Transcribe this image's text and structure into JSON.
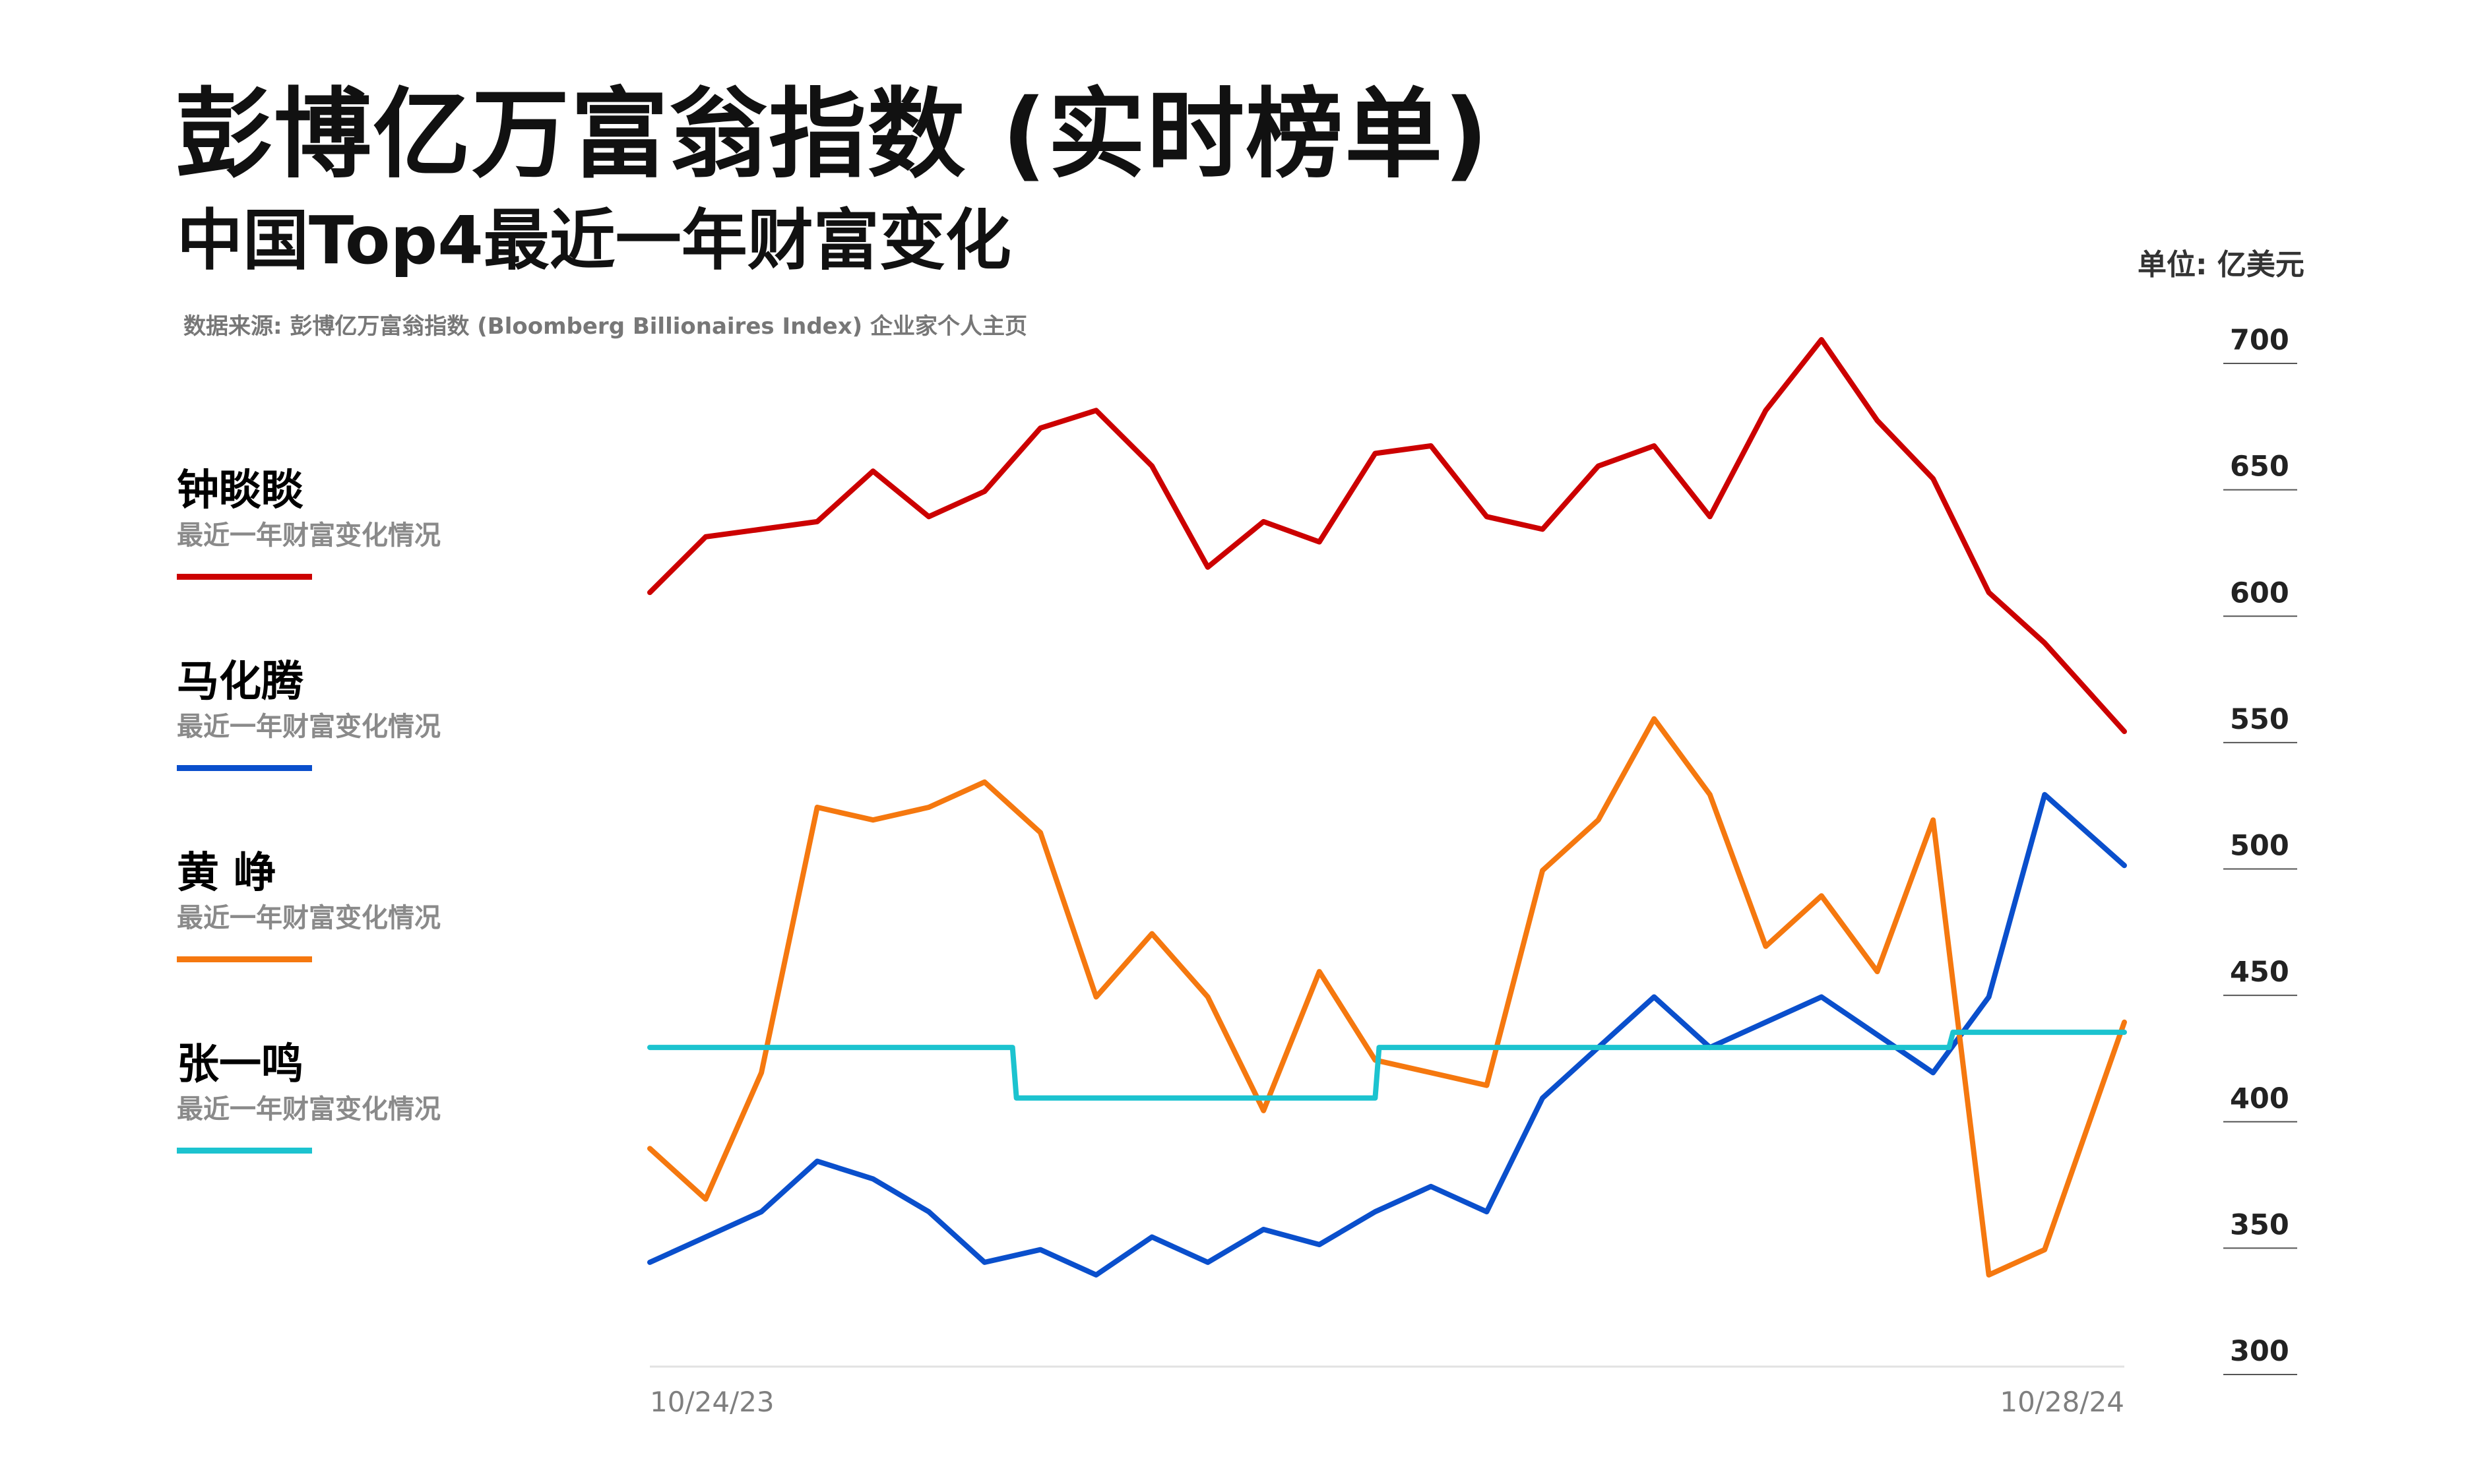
{
  "title": "彭博亿万富翁指数 (实时榜单)",
  "subtitle": "中国Top4最近一年财富变化",
  "source": "数据来源: 彭博亿万富翁指数 (Bloomberg Billionaires Index) 企业家个人主页",
  "unit": "单位: 亿美元",
  "legend": [
    {
      "name": "钟睒睒",
      "desc": "最近一年财富变化情况",
      "color": "#cc0000"
    },
    {
      "name": "马化腾",
      "desc": "最近一年财富变化情况",
      "color": "#0a4fcc"
    },
    {
      "name": "黄 峥",
      "desc": "最近一年财富变化情况",
      "color": "#f5780f"
    },
    {
      "name": "张一鸣",
      "desc": "最近一年财富变化情况",
      "color": "#1cc3cf"
    }
  ],
  "chart_data": {
    "type": "line",
    "title": "彭博亿万富翁指数 (实时榜单)",
    "subtitle": "中国Top4最近一年财富变化",
    "ylabel": "单位: 亿美元",
    "ylim": [
      300,
      700
    ],
    "yticks": [
      "700",
      "650",
      "600",
      "550",
      "500",
      "450",
      "400",
      "350",
      "300"
    ],
    "xlim": [
      "10/24/23",
      "10/28/24"
    ],
    "xticks": [
      "10/24/23",
      "10/28/24"
    ],
    "grid": false,
    "legend_position": "left",
    "series": [
      {
        "name": "钟睒睒",
        "color": "#cc0000",
        "x": [
          "2023-10-24",
          "2023-11-07",
          "2023-11-21",
          "2023-12-05",
          "2023-12-19",
          "2024-01-02",
          "2024-01-16",
          "2024-01-30",
          "2024-02-13",
          "2024-02-27",
          "2024-03-12",
          "2024-03-26",
          "2024-04-09",
          "2024-04-23",
          "2024-05-07",
          "2024-05-21",
          "2024-06-04",
          "2024-06-18",
          "2024-07-02",
          "2024-07-16",
          "2024-07-30",
          "2024-08-13",
          "2024-08-27",
          "2024-09-10",
          "2024-09-24",
          "2024-10-08",
          "2024-10-28"
        ],
        "values": [
          600,
          622,
          625,
          628,
          648,
          630,
          640,
          665,
          672,
          650,
          610,
          628,
          620,
          655,
          658,
          630,
          625,
          650,
          658,
          630,
          672,
          700,
          668,
          645,
          600,
          580,
          545
        ]
      },
      {
        "name": "马化腾",
        "color": "#0a4fcc",
        "x": [
          "2023-10-24",
          "2023-11-07",
          "2023-11-21",
          "2023-12-05",
          "2023-12-19",
          "2024-01-02",
          "2024-01-16",
          "2024-01-30",
          "2024-02-13",
          "2024-02-27",
          "2024-03-12",
          "2024-03-26",
          "2024-04-09",
          "2024-04-23",
          "2024-05-07",
          "2024-05-21",
          "2024-06-04",
          "2024-06-18",
          "2024-07-02",
          "2024-07-16",
          "2024-07-30",
          "2024-08-13",
          "2024-08-27",
          "2024-09-10",
          "2024-09-24",
          "2024-10-08",
          "2024-10-28"
        ],
        "values": [
          335,
          345,
          355,
          375,
          368,
          355,
          335,
          340,
          330,
          345,
          335,
          348,
          342,
          355,
          365,
          355,
          400,
          420,
          440,
          420,
          430,
          440,
          425,
          410,
          440,
          520,
          492
        ]
      },
      {
        "name": "黄 峥",
        "color": "#f5780f",
        "x": [
          "2023-10-24",
          "2023-11-07",
          "2023-11-21",
          "2023-12-05",
          "2023-12-19",
          "2024-01-02",
          "2024-01-16",
          "2024-01-30",
          "2024-02-13",
          "2024-02-27",
          "2024-03-12",
          "2024-03-26",
          "2024-04-09",
          "2024-04-23",
          "2024-05-07",
          "2024-05-21",
          "2024-06-04",
          "2024-06-18",
          "2024-07-02",
          "2024-07-16",
          "2024-07-30",
          "2024-08-13",
          "2024-08-27",
          "2024-09-10",
          "2024-09-24",
          "2024-10-08",
          "2024-10-28"
        ],
        "values": [
          380,
          360,
          410,
          515,
          510,
          515,
          525,
          505,
          440,
          465,
          440,
          395,
          450,
          415,
          410,
          405,
          490,
          510,
          550,
          520,
          460,
          480,
          450,
          510,
          330,
          340,
          430
        ]
      },
      {
        "name": "张一鸣",
        "color": "#1cc3cf",
        "x": [
          "2023-10-24",
          "2024-01-23",
          "2024-01-24",
          "2024-04-23",
          "2024-04-24",
          "2024-09-14",
          "2024-09-15",
          "2024-10-28"
        ],
        "values": [
          420,
          420,
          400,
          400,
          420,
          420,
          426,
          426
        ]
      }
    ]
  }
}
